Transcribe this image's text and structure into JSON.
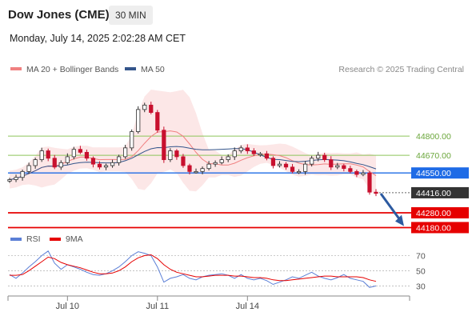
{
  "header": {
    "title": "Dow Jones (CME)",
    "timeframe": "30 MIN",
    "datetime": "Monday, July 14, 2025 2:02:28 AM CET"
  },
  "chart_data": [
    {
      "type": "candlestick",
      "legend": [
        {
          "name": "MA 20 + Bollinger Bands",
          "color": "#f08080"
        },
        {
          "name": "MA 50",
          "color": "#34558b"
        }
      ],
      "credit": "Research © 2025 Trading Central",
      "levels": [
        {
          "value": 44800,
          "label": "44800.00",
          "style": "resistance",
          "color": "#8dc45a"
        },
        {
          "value": 44670,
          "label": "44670.00",
          "style": "resistance",
          "color": "#8dc45a"
        },
        {
          "value": 44550,
          "label": "44550.00",
          "style": "pivot",
          "color": "#1e6be6"
        },
        {
          "value": 44416,
          "label": "44416.00",
          "style": "last",
          "color": "#333333"
        },
        {
          "value": 44280,
          "label": "44280.00",
          "style": "support",
          "color": "#e60000"
        },
        {
          "value": 44180,
          "label": "44180.00",
          "style": "support",
          "color": "#e60000"
        }
      ],
      "price_points": [
        44505,
        44520,
        44560,
        44600,
        44640,
        44700,
        44650,
        44590,
        44620,
        44660,
        44710,
        44690,
        44650,
        44610,
        44590,
        44600,
        44620,
        44660,
        44720,
        44830,
        44980,
        45010,
        44960,
        44840,
        44640,
        44700,
        44660,
        44600,
        44560,
        44560,
        44580,
        44610,
        44620,
        44640,
        44660,
        44700,
        44720,
        44700,
        44680,
        44680,
        44650,
        44600,
        44610,
        44590,
        44560,
        44560,
        44610,
        44650,
        44670,
        44640,
        44590,
        44600,
        44580,
        44560,
        44540,
        44550,
        44420,
        44415
      ],
      "ylim": [
        44150,
        45180
      ],
      "xticks": [
        {
          "index": 9,
          "label": "Jul 10"
        },
        {
          "index": 23,
          "label": "Jul 11"
        },
        {
          "index": 37,
          "label": "Jul 14"
        }
      ],
      "forecast_arrow": {
        "from": 44410,
        "to": 44190
      }
    },
    {
      "type": "line",
      "legend": [
        {
          "name": "RSI",
          "color": "#5b7fd6"
        },
        {
          "name": "9MA",
          "color": "#e60000"
        }
      ],
      "rsi_points": [
        45,
        40,
        47,
        55,
        62,
        70,
        76,
        60,
        52,
        58,
        55,
        52,
        48,
        45,
        44,
        46,
        50,
        55,
        62,
        70,
        75,
        73,
        70,
        55,
        35,
        40,
        42,
        45,
        40,
        38,
        42,
        44,
        45,
        46,
        44,
        40,
        45,
        40,
        38,
        40,
        37,
        32,
        35,
        38,
        42,
        40,
        44,
        48,
        43,
        40,
        38,
        41,
        45,
        40,
        38,
        36,
        28,
        30
      ],
      "ma9_points": [
        44,
        44,
        45,
        50,
        56,
        62,
        68,
        66,
        61,
        58,
        56,
        54,
        51,
        48,
        46,
        46,
        47,
        50,
        55,
        62,
        67,
        70,
        71,
        66,
        58,
        52,
        48,
        46,
        44,
        42,
        42,
        43,
        44,
        44,
        44,
        43,
        43,
        42,
        41,
        41,
        40,
        38,
        37,
        37,
        38,
        39,
        40,
        41,
        42,
        43,
        43,
        42,
        42,
        42,
        42,
        41,
        38,
        36
      ],
      "ylim": [
        22,
        80
      ],
      "yticks": [
        30,
        50,
        70
      ]
    }
  ]
}
